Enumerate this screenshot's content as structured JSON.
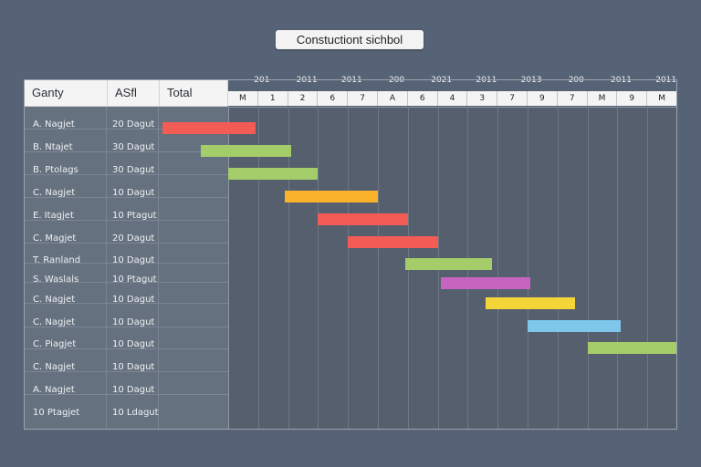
{
  "title": "Constuctiont sichbol",
  "table": {
    "headers": [
      "Ganty",
      "ASfl",
      "Total"
    ],
    "rows": [
      {
        "task": "A. Nagjet",
        "duration": "20 Dagut"
      },
      {
        "task": "B. Ntajet",
        "duration": "30 Dagut"
      },
      {
        "task": "B. Ptolags",
        "duration": "30 Dagut"
      },
      {
        "task": "C. Nagjet",
        "duration": "10 Dagut"
      },
      {
        "task": "E. Itagjet",
        "duration": "10 Ptagut"
      },
      {
        "task": "C. Magjet",
        "duration": "20 Dagut"
      },
      {
        "task": "T. Ranland",
        "duration": "10 Dagut"
      },
      {
        "task": "S. Waslals",
        "duration": "10 Ptagut"
      },
      {
        "task": "C. Nagjet",
        "duration": "10 Dagut"
      },
      {
        "task": "C. Nagjet",
        "duration": "10 Dagut"
      },
      {
        "task": "C. Piagjet",
        "duration": "10 Dagut"
      },
      {
        "task": "C. Nagjet",
        "duration": "10 Dagut"
      },
      {
        "task": "A. Nagjet",
        "duration": "10 Dagut"
      },
      {
        "task": "10 Ptagjet",
        "duration": "10 Ldagut"
      }
    ]
  },
  "chart_data": {
    "type": "gantt",
    "title": "Constuctiont sichbol",
    "years": [
      "201",
      "2011",
      "2011",
      "200",
      "2021",
      "2011",
      "2013",
      "200",
      "2011",
      "2011"
    ],
    "months": [
      "M",
      "1",
      "2",
      "6",
      "7",
      "A",
      "6",
      "4",
      "3",
      "7",
      "9",
      "7",
      "M",
      "9",
      "M"
    ],
    "x_range": [
      0,
      15
    ],
    "bars": [
      {
        "row": 0,
        "start": -2.3,
        "end": 0.9,
        "color": "#f25c54"
      },
      {
        "row": 1,
        "start": -0.9,
        "end": 2.1,
        "color": "#a4cc68"
      },
      {
        "row": 2,
        "start": 0.0,
        "end": 3.0,
        "color": "#a4cc68"
      },
      {
        "row": 3,
        "start": 1.9,
        "end": 5.0,
        "color": "#f9b32a"
      },
      {
        "row": 4,
        "start": 3.0,
        "end": 6.0,
        "color": "#f25c54"
      },
      {
        "row": 5,
        "start": 4.0,
        "end": 7.0,
        "color": "#f25c54"
      },
      {
        "row": 6,
        "start": 5.9,
        "end": 8.8,
        "color": "#a4cc68"
      },
      {
        "row": 7,
        "start": 7.1,
        "end": 10.1,
        "color": "#c764c0"
      },
      {
        "row": 8,
        "start": 8.6,
        "end": 11.6,
        "color": "#f5d43a"
      },
      {
        "row": 9,
        "start": 10.0,
        "end": 13.1,
        "color": "#7ec6ea"
      },
      {
        "row": 10,
        "start": 12.0,
        "end": 15.0,
        "color": "#a4cc68"
      }
    ]
  }
}
